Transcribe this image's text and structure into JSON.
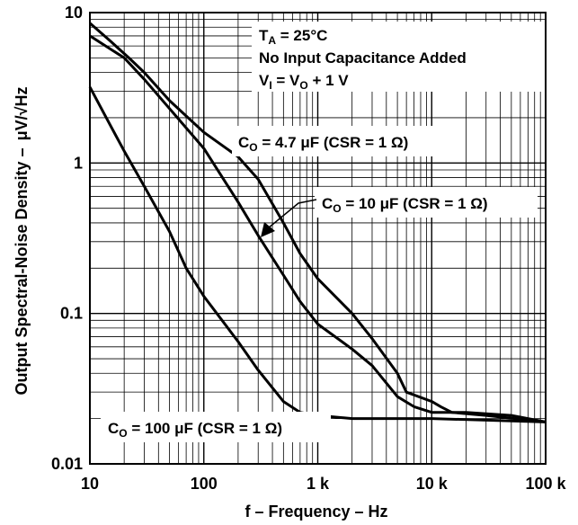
{
  "chart_data": {
    "type": "line",
    "xscale": "log",
    "yscale": "log",
    "xlim": [
      10,
      100000
    ],
    "ylim": [
      0.01,
      10
    ],
    "xticks": [
      {
        "v": 10,
        "label": "10"
      },
      {
        "v": 100,
        "label": "100"
      },
      {
        "v": 1000,
        "label": "1 k"
      },
      {
        "v": 10000,
        "label": "10 k"
      },
      {
        "v": 100000,
        "label": "100 k"
      }
    ],
    "yticks": [
      {
        "v": 10,
        "label": "10"
      },
      {
        "v": 1,
        "label": "1"
      },
      {
        "v": 0.1,
        "label": "0.1"
      },
      {
        "v": 0.01,
        "label": "0.01"
      }
    ],
    "xlabel": "f – Frequency – Hz",
    "ylabel": "Output Spectral-Noise Density –",
    "ylabel_unit": "μV/√Hz",
    "grid": true,
    "conditions": {
      "line1": {
        "main": "T",
        "sub": "A",
        "rest": " = 25°C"
      },
      "line2": "No Input Capacitance Added",
      "line3": {
        "a": "V",
        "a_sub": "I",
        "b": " = V",
        "b_sub": "O",
        "c": " + 1 V"
      }
    },
    "series": [
      {
        "key": "c47",
        "label_pre": "C",
        "label_sub": "O",
        "label_post": " = 4.7 μF (CSR = 1 Ω)",
        "points": [
          [
            10,
            8.5
          ],
          [
            15,
            6.5
          ],
          [
            22,
            5.0
          ],
          [
            30,
            4.0
          ],
          [
            50,
            2.6
          ],
          [
            100,
            1.6
          ],
          [
            200,
            1.1
          ],
          [
            300,
            0.78
          ],
          [
            500,
            0.4
          ],
          [
            700,
            0.25
          ],
          [
            1000,
            0.17
          ],
          [
            2000,
            0.1
          ],
          [
            3000,
            0.068
          ],
          [
            5000,
            0.04
          ],
          [
            6000,
            0.03
          ],
          [
            10000,
            0.026
          ],
          [
            12000,
            0.024
          ],
          [
            15000,
            0.022
          ],
          [
            30000,
            0.021
          ],
          [
            100000,
            0.019
          ]
        ]
      },
      {
        "key": "c10",
        "label_pre": "C",
        "label_sub": "O",
        "label_post": " = 10 μF (CSR = 1 Ω)",
        "points": [
          [
            10,
            7.0
          ],
          [
            20,
            5.0
          ],
          [
            30,
            3.6
          ],
          [
            50,
            2.3
          ],
          [
            100,
            1.25
          ],
          [
            200,
            0.55
          ],
          [
            300,
            0.33
          ],
          [
            500,
            0.18
          ],
          [
            700,
            0.12
          ],
          [
            1000,
            0.085
          ],
          [
            2000,
            0.058
          ],
          [
            3000,
            0.045
          ],
          [
            5000,
            0.028
          ],
          [
            7000,
            0.024
          ],
          [
            10000,
            0.022
          ],
          [
            20000,
            0.022
          ],
          [
            50000,
            0.021
          ],
          [
            100000,
            0.019
          ]
        ]
      },
      {
        "key": "c100",
        "label_pre": "C",
        "label_sub": "O",
        "label_post": " = 100 μF (CSR = 1 Ω)",
        "points": [
          [
            10,
            3.2
          ],
          [
            15,
            1.8
          ],
          [
            20,
            1.2
          ],
          [
            30,
            0.7
          ],
          [
            50,
            0.35
          ],
          [
            70,
            0.2
          ],
          [
            100,
            0.13
          ],
          [
            200,
            0.065
          ],
          [
            300,
            0.042
          ],
          [
            500,
            0.026
          ],
          [
            700,
            0.022
          ],
          [
            1000,
            0.021
          ],
          [
            2000,
            0.02
          ],
          [
            5000,
            0.02
          ],
          [
            10000,
            0.02
          ],
          [
            100000,
            0.019
          ]
        ]
      }
    ],
    "arrow_target_series": "c10"
  }
}
